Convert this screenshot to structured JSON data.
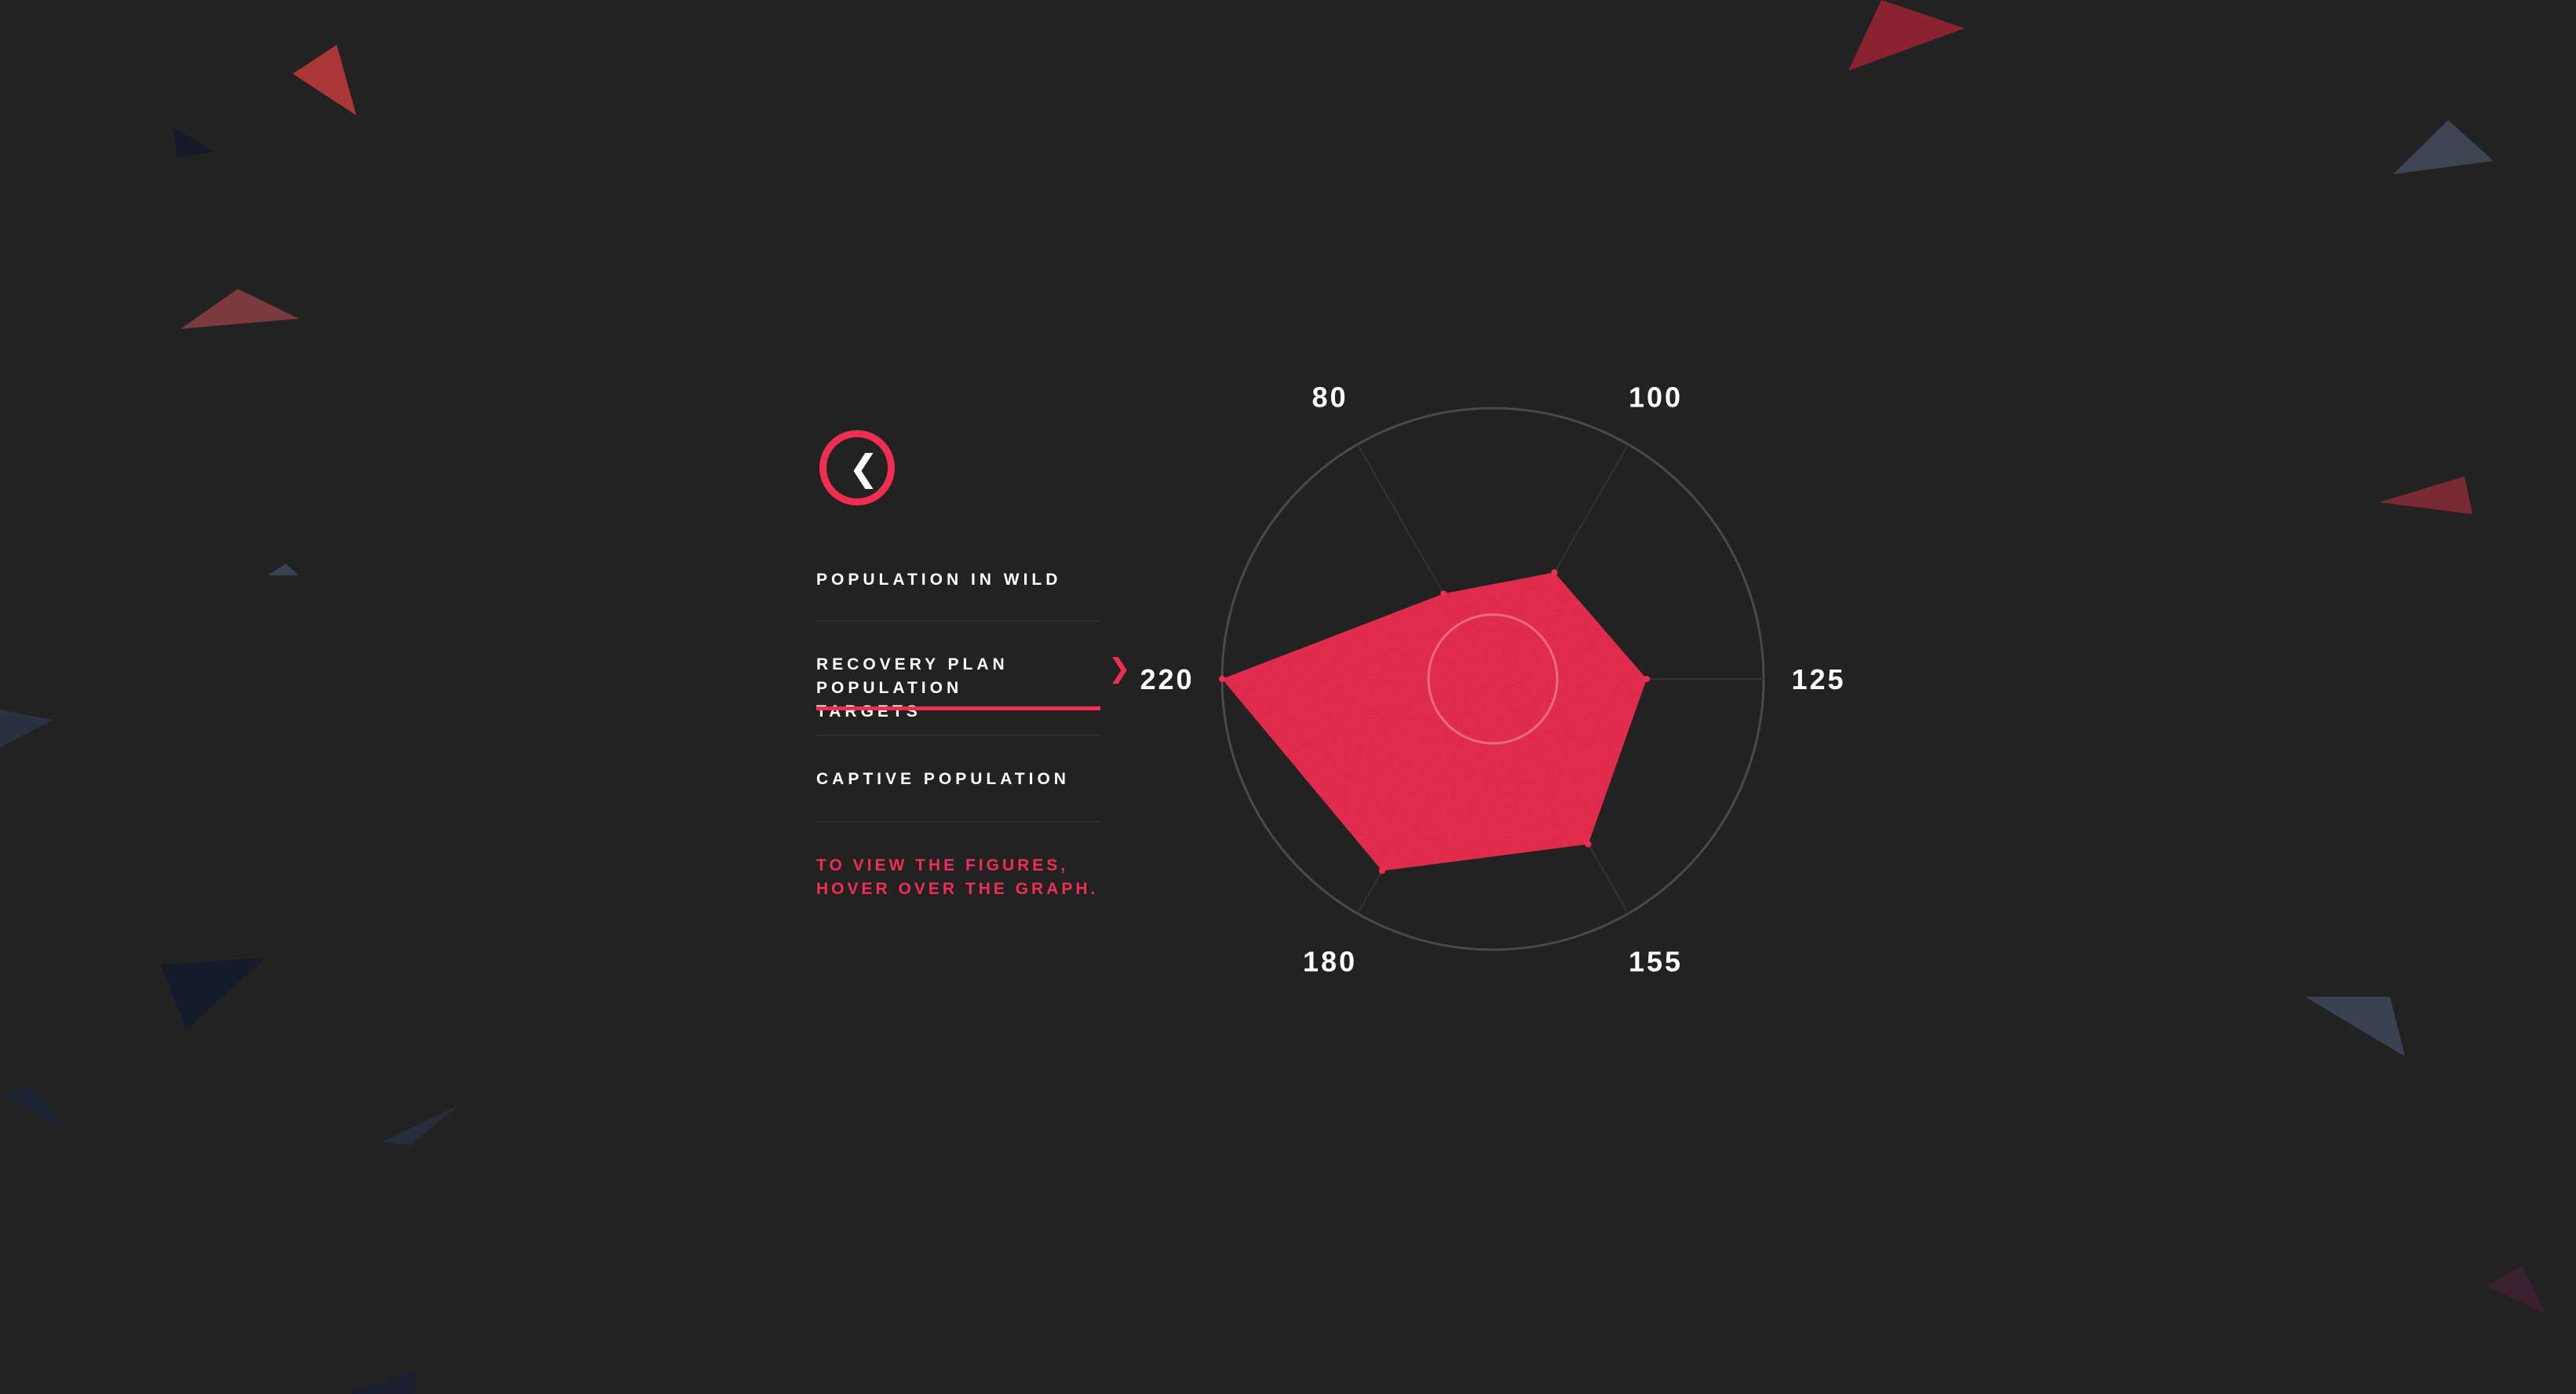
{
  "menu": {
    "back_icon": "chevron-left-icon",
    "items": [
      {
        "label": "POPULATION IN WILD",
        "active": false
      },
      {
        "label": "RECOVERY PLAN POPULATION TARGETS",
        "active": true
      },
      {
        "label": "CAPTIVE POPULATION",
        "active": false
      }
    ],
    "hint": "TO VIEW THE FIGURES, HOVER OVER THE GRAPH.",
    "active_indicator_icon": "chevron-right-icon"
  },
  "colors": {
    "background": "#222222",
    "accent": "#ef2e52",
    "grid": "#4a4a4a",
    "text": "#ffffff"
  },
  "chart_data": {
    "type": "radar",
    "categories": [
      "80",
      "100",
      "125",
      "155",
      "180",
      "220"
    ],
    "values": [
      80,
      100,
      125,
      155,
      180,
      220
    ],
    "rlim": [
      0,
      220
    ],
    "grid": true,
    "legend": "none"
  }
}
